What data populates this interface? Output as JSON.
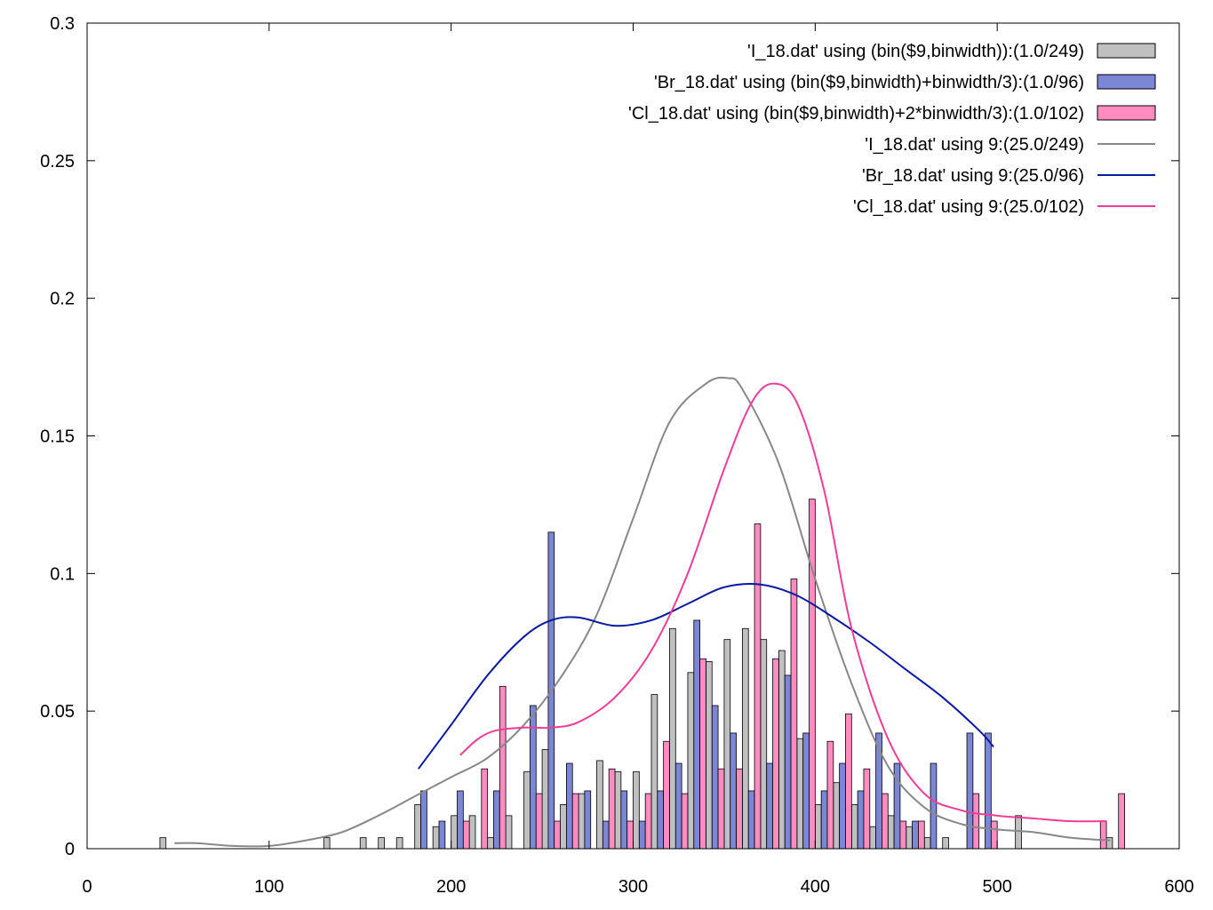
{
  "chart_data": {
    "type": "bar",
    "title": "",
    "xlabel": "",
    "ylabel": "",
    "xlim": [
      0,
      600
    ],
    "ylim": [
      0,
      0.3
    ],
    "xticks": [
      "0",
      "100",
      "200",
      "300",
      "400",
      "500",
      "600"
    ],
    "yticks": [
      "0",
      "0.05",
      "0.1",
      "0.15",
      "0.2",
      "0.25",
      "0.3"
    ],
    "grid": false,
    "legend_position": "top-right",
    "binwidth": 10,
    "bar_series": [
      {
        "name": "'I_18.dat'  using (bin($9,binwidth)):(1.0/249)",
        "color": "#c0c0c0",
        "offset": 0,
        "bins": [
          40,
          130,
          150,
          160,
          170,
          180,
          190,
          200,
          210,
          220,
          230,
          240,
          250,
          260,
          270,
          280,
          290,
          300,
          310,
          320,
          330,
          340,
          350,
          360,
          370,
          380,
          390,
          400,
          410,
          420,
          430,
          440,
          450,
          460,
          470,
          510,
          560
        ],
        "values": [
          0.004,
          0.004,
          0.004,
          0.004,
          0.004,
          0.016,
          0.008,
          0.012,
          0.012,
          0.004,
          0.012,
          0.028,
          0.036,
          0.016,
          0.02,
          0.032,
          0.028,
          0.028,
          0.056,
          0.08,
          0.064,
          0.068,
          0.076,
          0.08,
          0.076,
          0.072,
          0.04,
          0.016,
          0.024,
          0.016,
          0.008,
          0.012,
          0.008,
          0.004,
          0.004,
          0.012,
          0.004
        ]
      },
      {
        "name": "'Br_18.dat' using (bin($9,binwidth)+binwidth/3):(1.0/96)",
        "color": "#7b86d4",
        "offset": 3.333,
        "bins": [
          180,
          190,
          200,
          220,
          240,
          250,
          260,
          270,
          280,
          290,
          300,
          310,
          320,
          330,
          340,
          350,
          360,
          370,
          380,
          390,
          400,
          410,
          420,
          430,
          440,
          450,
          460,
          480,
          490
        ],
        "values": [
          0.021,
          0.01,
          0.021,
          0.021,
          0.052,
          0.115,
          0.031,
          0.021,
          0.01,
          0.021,
          0.01,
          0.021,
          0.031,
          0.083,
          0.052,
          0.042,
          0.021,
          0.031,
          0.063,
          0.042,
          0.021,
          0.031,
          0.021,
          0.042,
          0.031,
          0.01,
          0.031,
          0.042,
          0.042
        ]
      },
      {
        "name": "'Cl_18.dat' using (bin($9,binwidth)+2*binwidth/3):(1.0/102)",
        "color": "#ff8cc0",
        "offset": 6.667,
        "bins": [
          200,
          210,
          220,
          240,
          250,
          260,
          280,
          290,
          300,
          310,
          320,
          330,
          340,
          350,
          360,
          370,
          380,
          390,
          400,
          410,
          420,
          430,
          440,
          450,
          480,
          490,
          550,
          560
        ],
        "values": [
          0.01,
          0.029,
          0.059,
          0.02,
          0.01,
          0.02,
          0.029,
          0.01,
          0.02,
          0.039,
          0.02,
          0.069,
          0.029,
          0.029,
          0.118,
          0.069,
          0.098,
          0.127,
          0.039,
          0.049,
          0.029,
          0.02,
          0.01,
          0.01,
          0.02,
          0.01,
          0.01,
          0.02
        ]
      }
    ],
    "line_series": [
      {
        "name": "'I_18.dat'  using 9:(25.0/249)",
        "color": "#888888",
        "x": [
          48,
          60,
          80,
          100,
          120,
          140,
          160,
          180,
          200,
          220,
          240,
          260,
          280,
          300,
          320,
          340,
          352,
          360,
          380,
          400,
          420,
          440,
          460,
          480,
          500,
          520,
          540,
          562
        ],
        "y": [
          0.002,
          0.002,
          0.001,
          0.001,
          0.003,
          0.006,
          0.012,
          0.019,
          0.026,
          0.033,
          0.045,
          0.062,
          0.085,
          0.12,
          0.155,
          0.169,
          0.171,
          0.167,
          0.14,
          0.098,
          0.06,
          0.03,
          0.015,
          0.009,
          0.007,
          0.006,
          0.004,
          0.003
        ]
      },
      {
        "name": "'Br_18.dat' using 9:(25.0/96)",
        "color": "#0a1aa0",
        "x": [
          182,
          200,
          220,
          240,
          255,
          270,
          290,
          310,
          330,
          350,
          370,
          390,
          410,
          430,
          450,
          470,
          490,
          498
        ],
        "y": [
          0.029,
          0.045,
          0.063,
          0.077,
          0.083,
          0.084,
          0.081,
          0.083,
          0.089,
          0.095,
          0.096,
          0.092,
          0.084,
          0.075,
          0.065,
          0.055,
          0.043,
          0.037
        ]
      },
      {
        "name": "'Cl_18.dat' using 9:(25.0/102)",
        "color": "#ee3d96",
        "x": [
          205,
          215,
          225,
          240,
          255,
          270,
          290,
          310,
          330,
          350,
          365,
          377,
          390,
          405,
          420,
          440,
          460,
          480,
          500,
          520,
          540,
          560
        ],
        "y": [
          0.034,
          0.04,
          0.043,
          0.044,
          0.044,
          0.046,
          0.055,
          0.072,
          0.1,
          0.138,
          0.162,
          0.169,
          0.162,
          0.13,
          0.08,
          0.04,
          0.02,
          0.014,
          0.012,
          0.011,
          0.01,
          0.01
        ]
      }
    ]
  }
}
